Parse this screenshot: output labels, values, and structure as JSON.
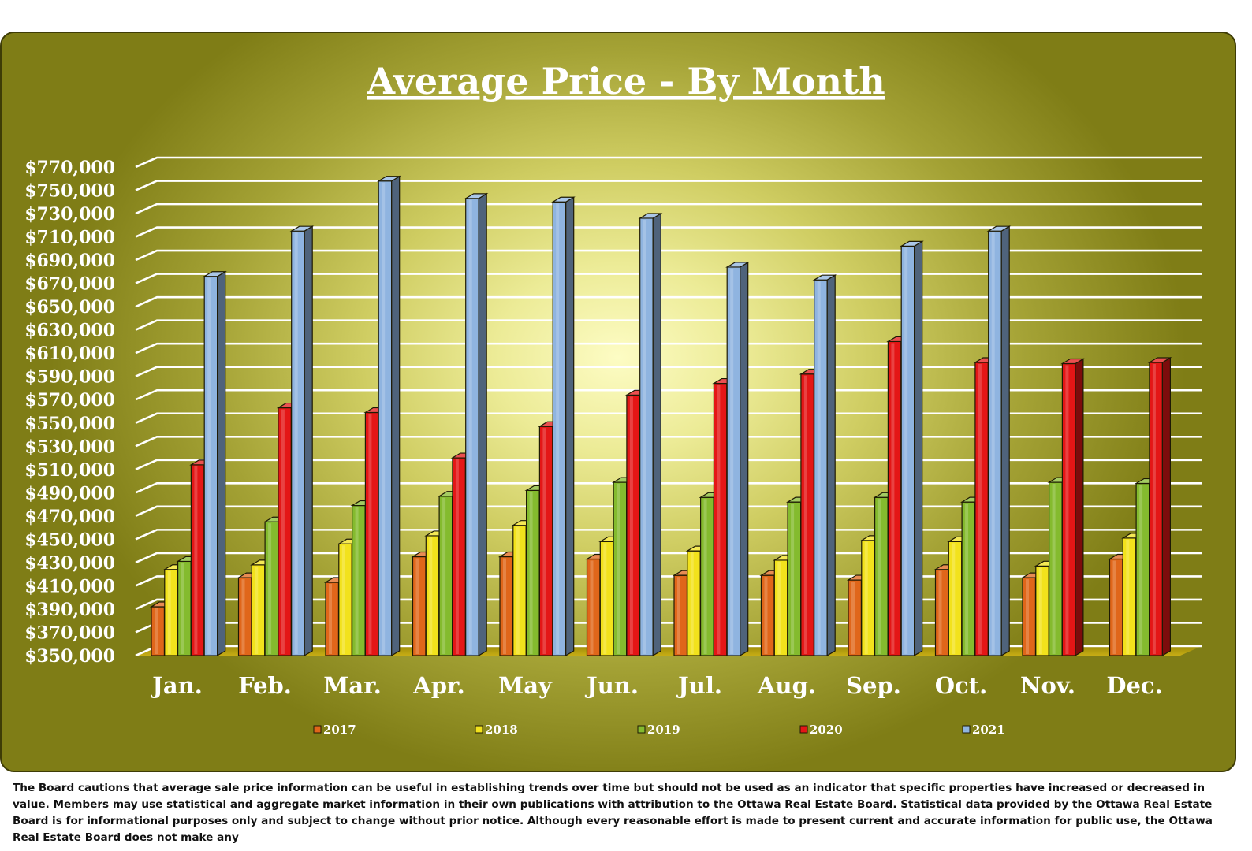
{
  "chart_data": {
    "type": "bar",
    "title": "Average Price - By Month",
    "categories": [
      "Jan.",
      "Feb.",
      "Mar.",
      "Apr.",
      "May",
      "Jun.",
      "Jul.",
      "Aug.",
      "Sep.",
      "Oct.",
      "Nov.",
      "Dec."
    ],
    "series": [
      {
        "name": "2017",
        "color": "#e0661a",
        "values": [
          392000,
          417000,
          413000,
          435000,
          435000,
          433000,
          419000,
          419000,
          415000,
          424000,
          417000,
          433000
        ]
      },
      {
        "name": "2018",
        "color": "#f2e21c",
        "values": [
          424000,
          428000,
          446000,
          453000,
          462000,
          448000,
          440000,
          432000,
          449000,
          448000,
          427000,
          451000
        ]
      },
      {
        "name": "2019",
        "color": "#84bb2e",
        "values": [
          431000,
          465000,
          479000,
          487000,
          492000,
          499000,
          486000,
          482000,
          486000,
          482000,
          499000,
          498000
        ]
      },
      {
        "name": "2020",
        "color": "#e41616",
        "values": [
          514000,
          563000,
          559000,
          520000,
          547000,
          574000,
          584000,
          592000,
          620000,
          602000,
          601000,
          602000
        ]
      },
      {
        "name": "2021",
        "color": "#8fb4e0",
        "values": [
          676000,
          715000,
          758000,
          743000,
          740000,
          726000,
          684000,
          673000,
          702000,
          715000,
          null,
          null
        ]
      }
    ],
    "ylim": [
      350000,
      770000
    ],
    "ytick_step": 20000,
    "ytick_labels": [
      "$350,000",
      "$370,000",
      "$390,000",
      "$410,000",
      "$430,000",
      "$450,000",
      "$470,000",
      "$490,000",
      "$510,000",
      "$530,000",
      "$550,000",
      "$570,000",
      "$590,000",
      "$610,000",
      "$630,000",
      "$650,000",
      "$670,000",
      "$690,000",
      "$710,000",
      "$730,000",
      "$750,000",
      "$770,000"
    ],
    "grid": true,
    "legend": "bottom",
    "xlabel": "",
    "ylabel": ""
  },
  "disclaimer": "The Board cautions that average sale price information can be useful in establishing trends over time but should not be used as an indicator that specific properties have increased or decreased in value.  Members may use statistical and aggregate market information in their own publications with attribution to the Ottawa Real Estate Board. Statistical data provided by the Ottawa Real Estate Board is for informational purposes only and subject to change without prior notice. Although every reasonable effort is made to present current and accurate information for public use, the Ottawa Real Estate Board does not make any"
}
